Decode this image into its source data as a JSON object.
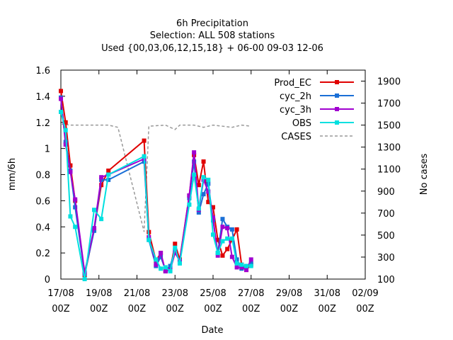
{
  "chart_data": {
    "type": "line",
    "title": [
      "6h Precipitation",
      "Selection: ALL    508 stations",
      "Used {00,03,06,12,15,18} + 06-00 09-03 12-06"
    ],
    "xlabel": "Date",
    "ylabel": "mm/6h",
    "y2label": "No cases",
    "xlim": [
      0,
      64
    ],
    "ylim": [
      0,
      1.6
    ],
    "y2lim": [
      100,
      2000
    ],
    "grid": false,
    "legend_position": "top-right",
    "x_ticks": [
      {
        "x": 0,
        "l1": "17/08",
        "l2": "00Z"
      },
      {
        "x": 8,
        "l1": "19/08",
        "l2": "00Z"
      },
      {
        "x": 16,
        "l1": "21/08",
        "l2": "00Z"
      },
      {
        "x": 24,
        "l1": "23/08",
        "l2": "00Z"
      },
      {
        "x": 32,
        "l1": "25/08",
        "l2": "00Z"
      },
      {
        "x": 40,
        "l1": "27/08",
        "l2": "00Z"
      },
      {
        "x": 48,
        "l1": "29/08",
        "l2": "00Z"
      },
      {
        "x": 56,
        "l1": "31/08",
        "l2": "00Z"
      },
      {
        "x": 64,
        "l1": "02/09",
        "l2": "00Z"
      }
    ],
    "y_ticks": [
      "0",
      "0.2",
      "0.4",
      "0.6",
      "0.8",
      "1",
      "1.2",
      "1.4",
      "1.6"
    ],
    "y2_ticks": [
      "100",
      "300",
      "500",
      "700",
      "900",
      "1100",
      "1300",
      "1500",
      "1700",
      "1900"
    ],
    "series": [
      {
        "name": "Prod_EC",
        "color": "#e00000",
        "marker": "square",
        "dashed": false,
        "points": [
          [
            0,
            1.44
          ],
          [
            1,
            1.2
          ],
          [
            2,
            0.87
          ],
          [
            3,
            0.6
          ],
          [
            5,
            0.03
          ],
          [
            7,
            0.38
          ],
          [
            8.5,
            0.72
          ],
          [
            10,
            0.83
          ],
          [
            17.5,
            1.06
          ],
          [
            18.5,
            0.36
          ],
          [
            20,
            0.14
          ],
          [
            21,
            0.2
          ],
          [
            22,
            0.06
          ],
          [
            23,
            0.07
          ],
          [
            24,
            0.27
          ],
          [
            25,
            0.15
          ],
          [
            27,
            0.64
          ],
          [
            28,
            0.95
          ],
          [
            29,
            0.72
          ],
          [
            30,
            0.9
          ],
          [
            31,
            0.59
          ],
          [
            32,
            0.55
          ],
          [
            33,
            0.3
          ],
          [
            34,
            0.18
          ],
          [
            35,
            0.23
          ],
          [
            36,
            0.3
          ],
          [
            37,
            0.38
          ],
          [
            38,
            0.11
          ],
          [
            39,
            0.07
          ],
          [
            40,
            0.11
          ]
        ]
      },
      {
        "name": "cyc_2h",
        "color": "#1a6fd6",
        "marker": "square",
        "dashed": false,
        "points": [
          [
            0,
            1.39
          ],
          [
            1,
            1.05
          ],
          [
            2,
            0.83
          ],
          [
            3,
            0.55
          ],
          [
            5,
            0.04
          ],
          [
            7,
            0.37
          ],
          [
            8.5,
            0.76
          ],
          [
            10,
            0.76
          ],
          [
            17.5,
            0.9
          ],
          [
            18.5,
            0.3
          ],
          [
            20,
            0.1
          ],
          [
            21,
            0.17
          ],
          [
            22,
            0.07
          ],
          [
            23,
            0.1
          ],
          [
            24,
            0.22
          ],
          [
            25,
            0.13
          ],
          [
            27,
            0.62
          ],
          [
            28,
            0.9
          ],
          [
            29,
            0.51
          ],
          [
            30,
            0.65
          ],
          [
            31,
            0.73
          ],
          [
            32,
            0.45
          ],
          [
            33,
            0.2
          ],
          [
            34,
            0.46
          ],
          [
            35,
            0.4
          ],
          [
            36,
            0.38
          ],
          [
            37,
            0.15
          ],
          [
            38,
            0.08
          ],
          [
            39,
            0.1
          ],
          [
            40,
            0.12
          ]
        ]
      },
      {
        "name": "cyc_3h",
        "color": "#a000d0",
        "marker": "square",
        "dashed": false,
        "points": [
          [
            0,
            1.38
          ],
          [
            1,
            1.03
          ],
          [
            2,
            0.82
          ],
          [
            3,
            0.61
          ],
          [
            5,
            0.05
          ],
          [
            7,
            0.39
          ],
          [
            8.5,
            0.78
          ],
          [
            10,
            0.8
          ],
          [
            17.5,
            0.92
          ],
          [
            18.5,
            0.32
          ],
          [
            20,
            0.11
          ],
          [
            21,
            0.2
          ],
          [
            22,
            0.06
          ],
          [
            23,
            0.07
          ],
          [
            24,
            0.2
          ],
          [
            25,
            0.14
          ],
          [
            27,
            0.64
          ],
          [
            28,
            0.97
          ],
          [
            29,
            0.53
          ],
          [
            30,
            0.76
          ],
          [
            31,
            0.67
          ],
          [
            32,
            0.47
          ],
          [
            33,
            0.18
          ],
          [
            34,
            0.4
          ],
          [
            35,
            0.39
          ],
          [
            36,
            0.17
          ],
          [
            37,
            0.09
          ],
          [
            38,
            0.09
          ],
          [
            39,
            0.07
          ],
          [
            40,
            0.15
          ]
        ]
      },
      {
        "name": "OBS",
        "color": "#00e0e0",
        "marker": "square",
        "dashed": false,
        "points": [
          [
            0,
            1.28
          ],
          [
            1,
            1.14
          ],
          [
            2,
            0.48
          ],
          [
            3,
            0.4
          ],
          [
            5,
            0.0
          ],
          [
            7,
            0.53
          ],
          [
            8.5,
            0.46
          ],
          [
            10,
            0.8
          ],
          [
            17.5,
            0.94
          ],
          [
            18.5,
            0.3
          ],
          [
            20,
            0.15
          ],
          [
            21,
            0.08
          ],
          [
            22,
            0.09
          ],
          [
            23,
            0.06
          ],
          [
            24,
            0.24
          ],
          [
            25,
            0.12
          ],
          [
            27,
            0.57
          ],
          [
            28,
            0.8
          ],
          [
            29,
            0.54
          ],
          [
            30,
            0.78
          ],
          [
            31,
            0.76
          ],
          [
            32,
            0.34
          ],
          [
            33,
            0.2
          ],
          [
            34,
            0.29
          ],
          [
            35,
            0.31
          ],
          [
            36,
            0.31
          ],
          [
            37,
            0.12
          ],
          [
            38,
            0.11
          ],
          [
            39,
            0.1
          ],
          [
            40,
            0.1
          ]
        ]
      }
    ],
    "cases_series": {
      "name": "CASES",
      "color": "#999999",
      "dashed": true,
      "points": [
        [
          0,
          1510
        ],
        [
          2,
          1500
        ],
        [
          4,
          1500
        ],
        [
          10,
          1500
        ],
        [
          12,
          1480
        ],
        [
          17.5,
          530
        ],
        [
          18.5,
          1490
        ],
        [
          22,
          1500
        ],
        [
          24,
          1460
        ],
        [
          25,
          1500
        ],
        [
          28,
          1500
        ],
        [
          30,
          1480
        ],
        [
          32,
          1500
        ],
        [
          34,
          1490
        ],
        [
          36,
          1480
        ],
        [
          38,
          1500
        ],
        [
          40,
          1490
        ]
      ]
    }
  }
}
